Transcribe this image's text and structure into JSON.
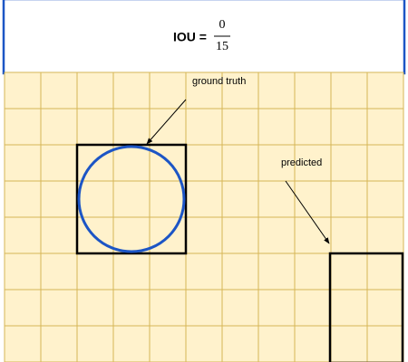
{
  "formula": {
    "label": "IOU =",
    "numerator": 0,
    "denominator": 15
  },
  "annotations": {
    "ground_truth": "ground truth",
    "predicted": "predicted"
  }
}
